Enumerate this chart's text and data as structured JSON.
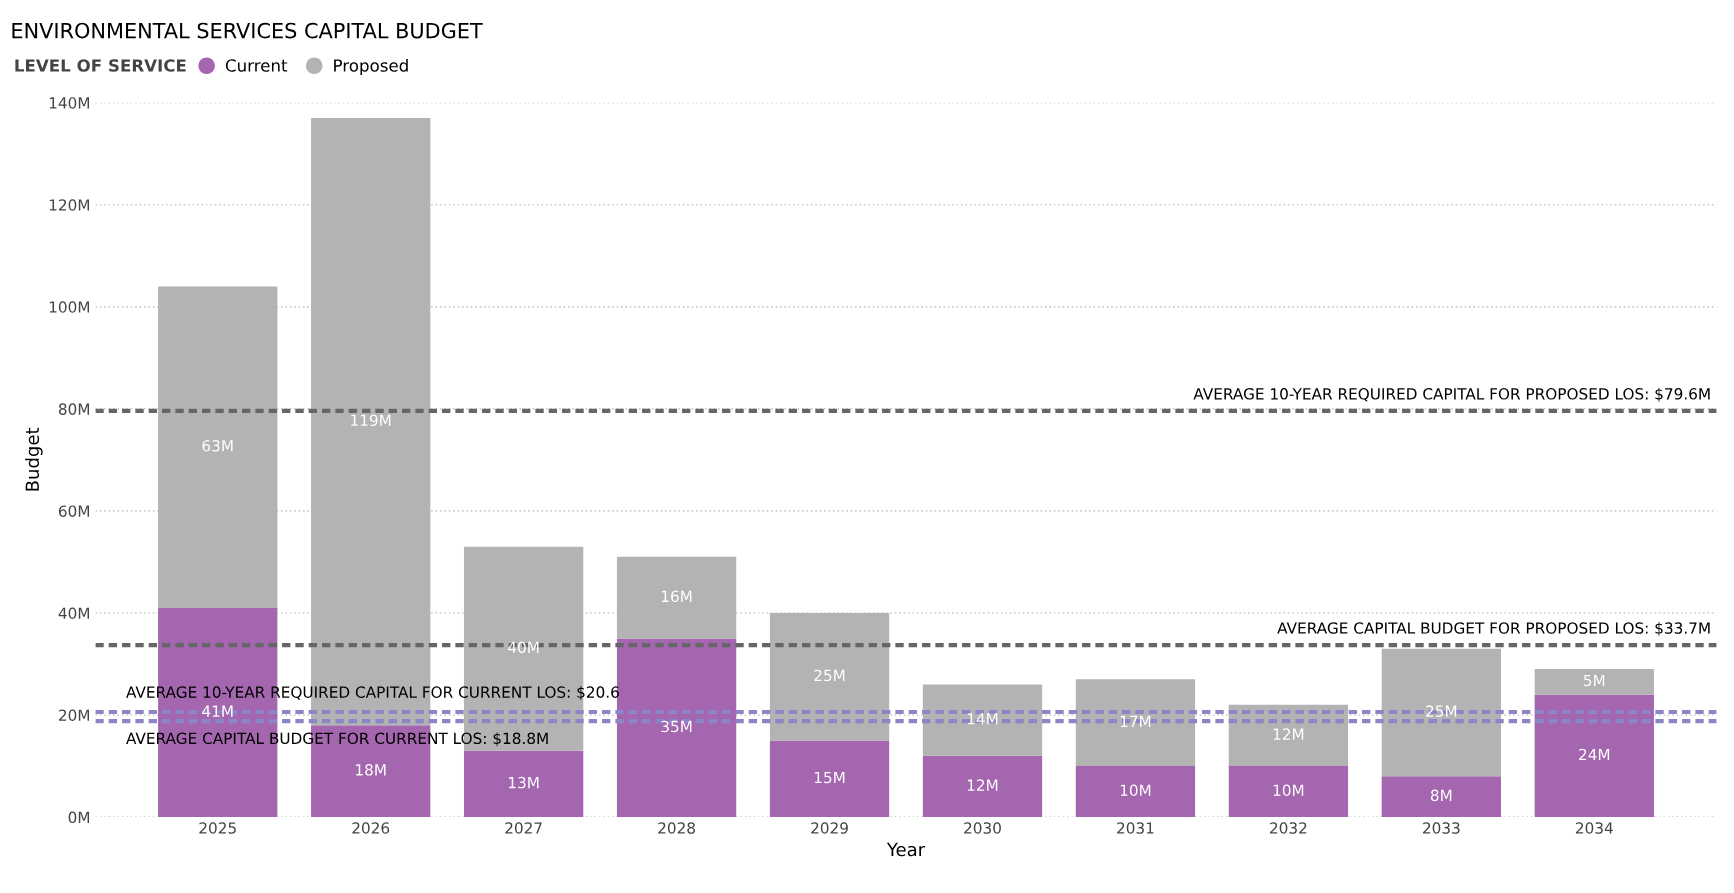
{
  "chart_data": {
    "type": "bar",
    "title": "ENVIRONMENTAL SERVICES CAPITAL BUDGET",
    "xlabel": "Year",
    "ylabel": "Budget",
    "legend_title": "LEVEL OF SERVICE",
    "legend": "top left",
    "stacked": true,
    "grid": "y",
    "categories": [
      "2025",
      "2026",
      "2027",
      "2028",
      "2029",
      "2030",
      "2031",
      "2032",
      "2033",
      "2034"
    ],
    "series": [
      {
        "name": "Current",
        "color": "#a566b0",
        "values": [
          41,
          18,
          13,
          35,
          15,
          12,
          10,
          10,
          8,
          24
        ],
        "value_labels": [
          "41M",
          "18M",
          "13M",
          "35M",
          "15M",
          "12M",
          "10M",
          "10M",
          "8M",
          "24M"
        ]
      },
      {
        "name": "Proposed",
        "color": "#b3b3b3",
        "values": [
          63,
          119,
          40,
          16,
          25,
          14,
          17,
          12,
          25,
          5
        ],
        "value_labels": [
          "63M",
          "119M",
          "40M",
          "16M",
          "25M",
          "14M",
          "17M",
          "12M",
          "25M",
          "5M"
        ]
      }
    ],
    "ylim": [
      0,
      140
    ],
    "yticks": [
      {
        "value": 0,
        "label": "0M"
      },
      {
        "value": 20,
        "label": "20M"
      },
      {
        "value": 40,
        "label": "40M"
      },
      {
        "value": 60,
        "label": "60M"
      },
      {
        "value": 80,
        "label": "80M"
      },
      {
        "value": 100,
        "label": "100M"
      },
      {
        "value": 120,
        "label": "120M"
      },
      {
        "value": 140,
        "label": "140M"
      }
    ],
    "ref_lines": [
      {
        "axis": "y",
        "value": 79.6,
        "label": "AVERAGE 10-YEAR REQUIRED CAPITAL FOR PROPOSED LOS: $79.6M",
        "color": "#666666",
        "line_style": "dashed"
      },
      {
        "axis": "y",
        "value": 33.7,
        "label": "AVERAGE CAPITAL BUDGET FOR PROPOSED LOS: $33.7M",
        "color": "#666666",
        "line_style": "dashed"
      },
      {
        "axis": "y",
        "value": 20.6,
        "label": "AVERAGE 10-YEAR REQUIRED CAPITAL FOR CURRENT LOS: $20.6",
        "color": "#8a86c8",
        "line_style": "dashed"
      },
      {
        "axis": "y",
        "value": 18.8,
        "label": "AVERAGE CAPITAL BUDGET FOR CURRENT LOS: $18.8M",
        "color": "#8a86c8",
        "line_style": "dashed"
      }
    ]
  }
}
